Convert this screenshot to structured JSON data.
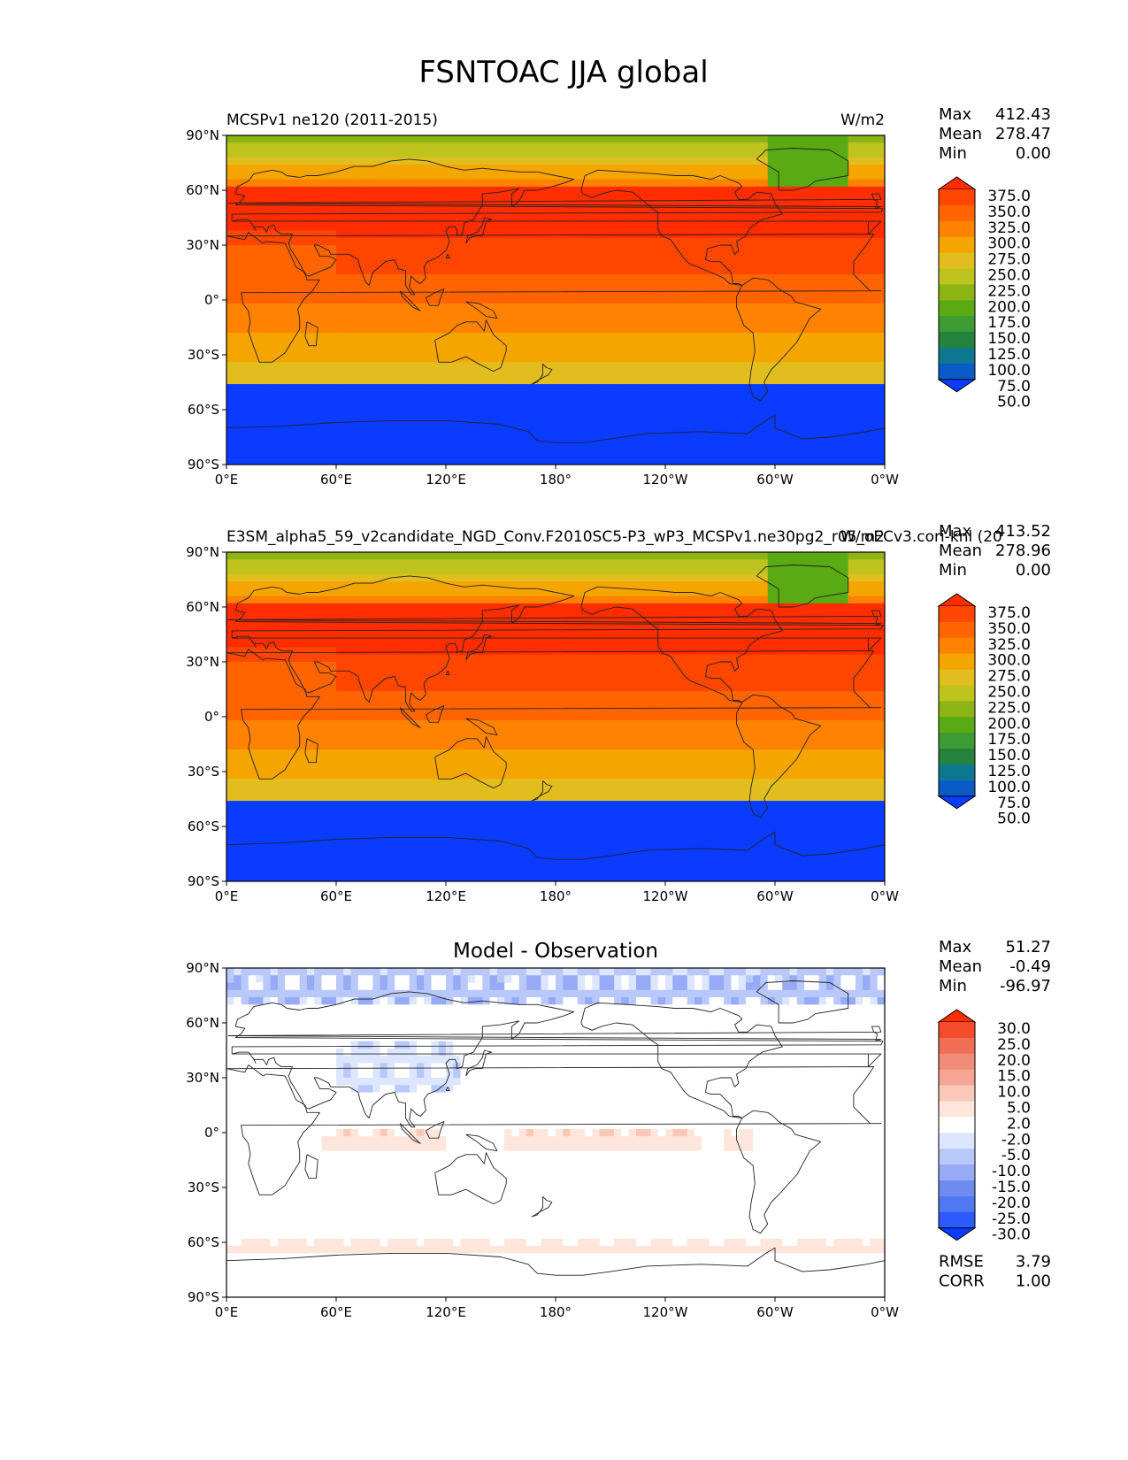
{
  "figure_title": "FSNTOAC JJA global",
  "stat_labels": {
    "max": "Max",
    "mean": "Mean",
    "min": "Min",
    "rmse": "RMSE",
    "corr": "CORR"
  },
  "colors": {
    "main_scale": [
      "#0a3cff",
      "#0a5ac8",
      "#0f7891",
      "#23823c",
      "#3c9b32",
      "#5aaa14",
      "#8cb414",
      "#bec31e",
      "#e1be1e",
      "#f5a500",
      "#ff8200",
      "#ff6400",
      "#ff4600",
      "#ff2d00"
    ],
    "diff_scale": [
      "#0a3cff",
      "#2d5aff",
      "#5078f0",
      "#6e8cf0",
      "#96aaf5",
      "#b9c8fa",
      "#dce6ff",
      "#ffffff",
      "#ffe6dc",
      "#fac8b9",
      "#f5a596",
      "#f08c78",
      "#f06e55",
      "#f54b2d",
      "#ff2d00"
    ],
    "coast": "#222222"
  },
  "chart_data": [
    {
      "type": "heatmap",
      "panel": "test",
      "title": "MCSPv1 ne120 (2011-2015)",
      "units": "W/m2",
      "stats": {
        "max": "412.43",
        "mean": "278.47",
        "min": "0.00"
      },
      "x_ticks": [
        "0°E",
        "60°E",
        "120°E",
        "180°",
        "120°W",
        "60°W",
        "0°W"
      ],
      "y_ticks": [
        "90°N",
        "60°N",
        "30°N",
        "0°",
        "30°S",
        "60°S",
        "90°S"
      ],
      "lon_range": [
        0,
        360
      ],
      "lat_range": [
        -90,
        90
      ],
      "colorbar_levels": [
        "375.0",
        "350.0",
        "325.0",
        "300.0",
        "275.0",
        "250.0",
        "225.0",
        "200.0",
        "175.0",
        "150.0",
        "125.0",
        "100.0",
        "75.0",
        "50.0"
      ],
      "colorbar_extend": "both",
      "field": "solar_insolation_jja"
    },
    {
      "type": "heatmap",
      "panel": "reference",
      "title": "E3SM_alpha5_59_v2candidate_NGD_Conv.F2010SC5-P3_wP3_MCSPv1.ne30pg2_r05_oECv3.cori-knl (20",
      "units": "W/m2",
      "stats": {
        "max": "413.52",
        "mean": "278.96",
        "min": "0.00"
      },
      "x_ticks": [
        "0°E",
        "60°E",
        "120°E",
        "180°",
        "120°W",
        "60°W",
        "0°W"
      ],
      "y_ticks": [
        "90°N",
        "60°N",
        "30°N",
        "0°",
        "30°S",
        "60°S",
        "90°S"
      ],
      "lon_range": [
        0,
        360
      ],
      "lat_range": [
        -90,
        90
      ],
      "colorbar_levels": [
        "375.0",
        "350.0",
        "325.0",
        "300.0",
        "275.0",
        "250.0",
        "225.0",
        "200.0",
        "175.0",
        "150.0",
        "125.0",
        "100.0",
        "75.0",
        "50.0"
      ],
      "colorbar_extend": "both",
      "field": "solar_insolation_jja"
    },
    {
      "type": "heatmap",
      "panel": "difference",
      "title": "Model - Observation",
      "units": "",
      "stats": {
        "max": "51.27",
        "mean": "-0.49",
        "min": "-96.97",
        "rmse": "3.79",
        "corr": "1.00"
      },
      "x_ticks": [
        "0°E",
        "60°E",
        "120°E",
        "180°",
        "120°W",
        "60°W",
        "0°W"
      ],
      "y_ticks": [
        "90°N",
        "60°N",
        "30°N",
        "0°",
        "30°S",
        "60°S",
        "90°S"
      ],
      "lon_range": [
        0,
        360
      ],
      "lat_range": [
        -90,
        90
      ],
      "colorbar_levels": [
        "30.0",
        "25.0",
        "20.0",
        "15.0",
        "10.0",
        "5.0",
        "2.0",
        "-2.0",
        "-5.0",
        "-10.0",
        "-15.0",
        "-20.0",
        "-25.0",
        "-30.0"
      ],
      "colorbar_extend": "both",
      "field": "difference_noise"
    }
  ]
}
